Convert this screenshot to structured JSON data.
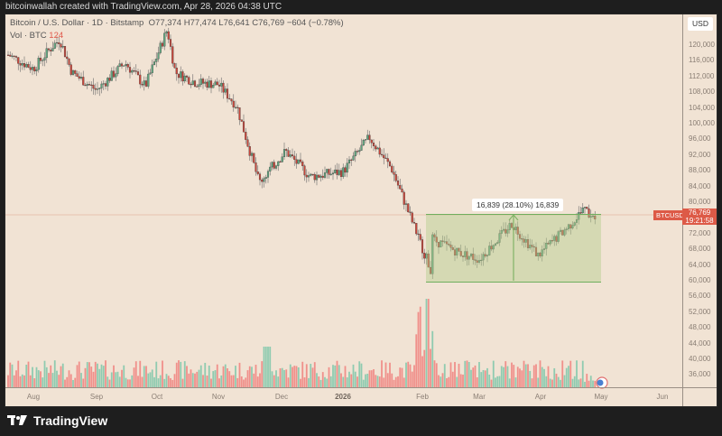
{
  "credit": "bitcoinwallah created with TradingView.com, Apr 28, 2026 04:38 UTC",
  "legend": {
    "symbol": "Bitcoin / U.S. Dollar · 1D · Bitstamp",
    "ohlc": "O77,374  H77,474  L76,641  C76,769  −604 (−0.78%)",
    "vol_label": "Vol · BTC",
    "vol_value": "124"
  },
  "currency": "USD",
  "last_price": {
    "symbol": "BTCUSD",
    "price": "76,769",
    "countdown": "19:21:58"
  },
  "measure": {
    "label": "16,839 (28.10%) 16,839"
  },
  "branding": "TradingView",
  "colors": {
    "bg": "#f1e3d4",
    "up": "#5fa57f",
    "down": "#c8463b",
    "vol_up": "#8fcbb0",
    "vol_down": "#f0908a",
    "accent": "#dd5a47"
  },
  "chart_data": {
    "type": "candlestick",
    "title": "Bitcoin / U.S. Dollar · 1D · Bitstamp",
    "ylabel": "USD",
    "ylim": [
      32000,
      124000
    ],
    "y_ticks": [
      120000,
      116000,
      112000,
      108000,
      104000,
      100000,
      96000,
      92000,
      88000,
      84000,
      80000,
      72000,
      68000,
      64000,
      60000,
      56000,
      52000,
      48000,
      44000,
      40000,
      36000
    ],
    "x_ticks": [
      "Aug",
      "Sep",
      "Oct",
      "Nov",
      "Dec",
      "2026",
      "Feb",
      "Mar",
      "Apr",
      "May",
      "Jun"
    ],
    "close_path": [
      {
        "date": "Jul 20",
        "close": 117500
      },
      {
        "date": "Aug 1",
        "close": 114000
      },
      {
        "date": "Aug 10",
        "close": 119500
      },
      {
        "date": "Aug 14",
        "close": 121500
      },
      {
        "date": "Aug 20",
        "close": 113000
      },
      {
        "date": "Sep 1",
        "close": 108500
      },
      {
        "date": "Sep 15",
        "close": 115500
      },
      {
        "date": "Sep 25",
        "close": 109500
      },
      {
        "date": "Oct 6",
        "close": 124000
      },
      {
        "date": "Oct 10",
        "close": 113000
      },
      {
        "date": "Oct 20",
        "close": 110500
      },
      {
        "date": "Nov 1",
        "close": 110000
      },
      {
        "date": "Nov 10",
        "close": 104500
      },
      {
        "date": "Nov 21",
        "close": 85000
      },
      {
        "date": "Dec 3",
        "close": 93000
      },
      {
        "date": "Dec 15",
        "close": 86500
      },
      {
        "date": "Jan 1",
        "close": 87800
      },
      {
        "date": "Jan 14",
        "close": 96500
      },
      {
        "date": "Jan 25",
        "close": 88500
      },
      {
        "date": "Feb 5",
        "close": 63000
      },
      {
        "date": "Feb 6",
        "close": 70500
      },
      {
        "date": "Feb 20",
        "close": 67000
      },
      {
        "date": "Mar 1",
        "close": 65500
      },
      {
        "date": "Mar 17",
        "close": 74500
      },
      {
        "date": "Mar 30",
        "close": 66500
      },
      {
        "date": "Apr 15",
        "close": 74000
      },
      {
        "date": "Apr 22",
        "close": 78000
      },
      {
        "date": "Apr 28",
        "close": 76769
      }
    ],
    "measurement": {
      "from": 60000,
      "to": 76839,
      "change": 16839,
      "percent": 28.1
    },
    "volume_peak_date": "Feb 6"
  }
}
